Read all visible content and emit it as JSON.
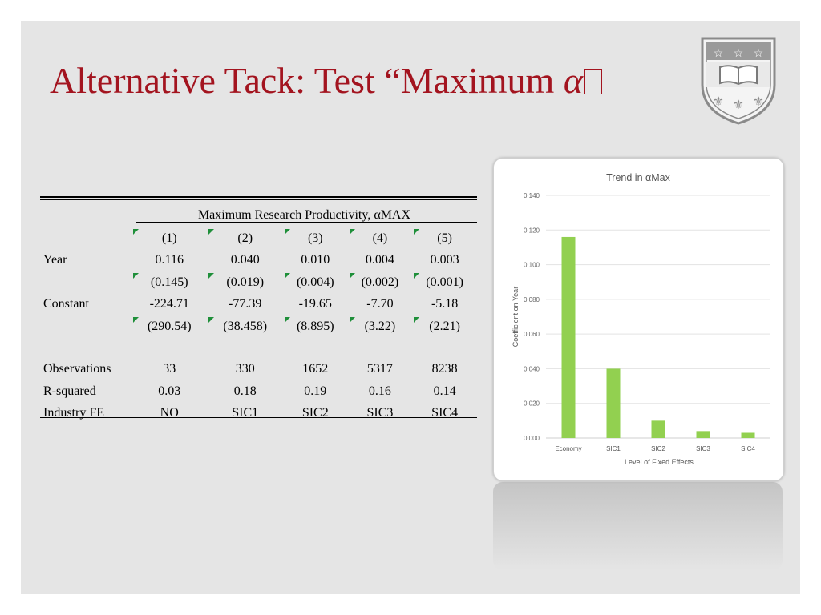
{
  "slide": {
    "title_text": "Alternative Tack: Test “Maximum ",
    "title_symbol": "α",
    "title_tail": "",
    "title_color": "#a3141f"
  },
  "table": {
    "super_header": "Maximum Research Productivity, αMAX",
    "columns": [
      "(1)",
      "(2)",
      "(3)",
      "(4)",
      "(5)"
    ],
    "rows": [
      {
        "label": "Year",
        "values": [
          "0.116",
          "0.040",
          "0.010",
          "0.004",
          "0.003"
        ]
      },
      {
        "label": "",
        "values": [
          "(0.145)",
          "(0.019)",
          "(0.004)",
          "(0.002)",
          "(0.001)"
        ]
      },
      {
        "label": "Constant",
        "values": [
          "-224.71",
          "-77.39",
          "-19.65",
          "-7.70",
          "-5.18"
        ]
      },
      {
        "label": "",
        "values": [
          "(290.54)",
          "(38.458)",
          "(8.895)",
          "(3.22)",
          "(2.21)"
        ]
      },
      {
        "label": "Observations",
        "values": [
          "33",
          "330",
          "1652",
          "5317",
          "8238"
        ]
      },
      {
        "label": "R-squared",
        "values": [
          "0.03",
          "0.18",
          "0.19",
          "0.16",
          "0.14"
        ]
      },
      {
        "label": "Industry FE",
        "values": [
          "NO",
          "SIC1",
          "SIC2",
          "SIC3",
          "SIC4"
        ]
      }
    ]
  },
  "chart_data": {
    "type": "bar",
    "title": "Trend in αMax",
    "xlabel": "Level of Fixed Effects",
    "ylabel": "Coefficient on Year",
    "categories": [
      "Economy",
      "SIC1",
      "SIC2",
      "SIC3",
      "SIC4"
    ],
    "values": [
      0.116,
      0.04,
      0.01,
      0.004,
      0.003
    ],
    "ylim": [
      0,
      0.14
    ],
    "yticks": [
      "0.000",
      "0.020",
      "0.040",
      "0.060",
      "0.080",
      "0.100",
      "0.120",
      "0.140"
    ],
    "grid": true,
    "legend": "none",
    "bar_color": "#92d050"
  }
}
